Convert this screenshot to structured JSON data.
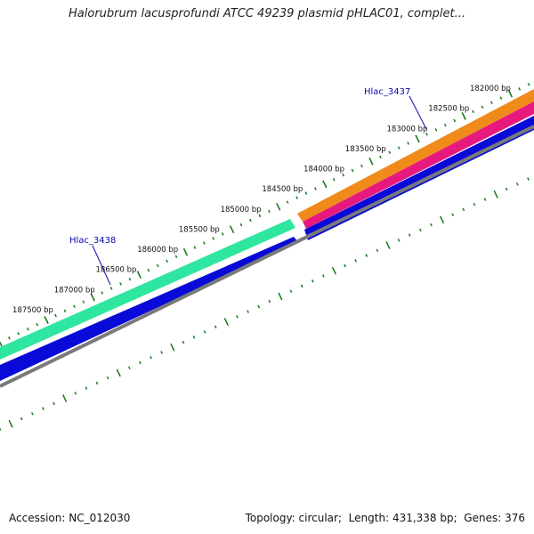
{
  "title": "Halorubrum lacusprofundi ATCC 49239 plasmid pHLAC01, complet...",
  "footer": {
    "accession_label": "Accession:",
    "accession": "NC_012030",
    "topology_label": "Topology:",
    "topology": "circular",
    "length_label": "Length:",
    "length": "431,338 bp",
    "genes_label": "Genes:",
    "genes": "376"
  },
  "ticks": [
    "182000 bp",
    "182500 bp",
    "183000 bp",
    "183500 bp",
    "184000 bp",
    "184500 bp",
    "185000 bp",
    "185500 bp",
    "186000 bp",
    "186500 bp",
    "187000 bp",
    "187500 bp"
  ],
  "genes": [
    {
      "label": "Hlac_3437",
      "color": "#0a0ab4"
    },
    {
      "label": "Hlac_3438",
      "color": "#0a0ab4"
    }
  ],
  "colors": {
    "tick": "#1a7a1a",
    "forward_cds": "#2ee6a0",
    "forward_cds_2": "#f08a1a",
    "forward_feature": "#e8197e",
    "reverse_cds": "#0a0ad8",
    "backbone": "#7a7a7a"
  }
}
